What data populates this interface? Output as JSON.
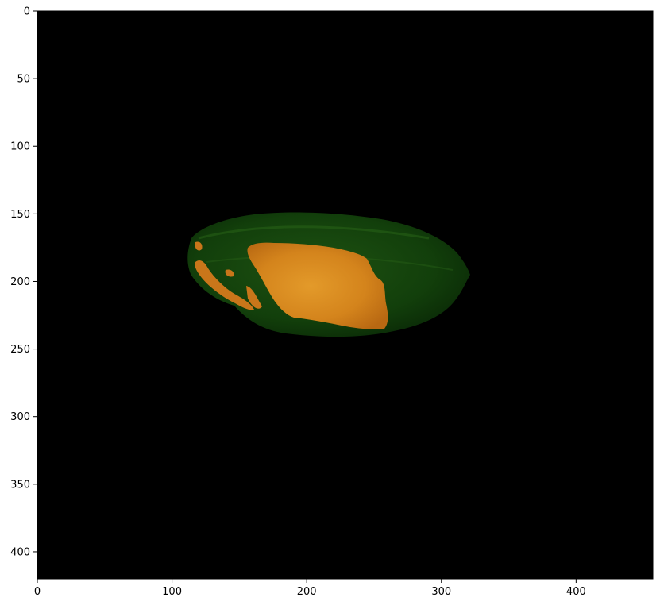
{
  "figure": {
    "image_description_colors": {
      "background": "#000000",
      "fruit_body": "#0f3a0a",
      "fruit_highlight": "#1d5a12",
      "segmented_region": "#d2801a",
      "segmented_region_light": "#e79a2c"
    },
    "axes": {
      "xlim": [
        0,
        457
      ],
      "ylim": [
        420,
        0
      ],
      "x_ticks": [
        {
          "value": 0,
          "label": "0"
        },
        {
          "value": 100,
          "label": "100"
        },
        {
          "value": 200,
          "label": "200"
        },
        {
          "value": 300,
          "label": "300"
        },
        {
          "value": 400,
          "label": "400"
        }
      ],
      "y_ticks": [
        {
          "value": 0,
          "label": "0"
        },
        {
          "value": 50,
          "label": "50"
        },
        {
          "value": 100,
          "label": "100"
        },
        {
          "value": 150,
          "label": "150"
        },
        {
          "value": 200,
          "label": "200"
        },
        {
          "value": 250,
          "label": "250"
        },
        {
          "value": 300,
          "label": "300"
        },
        {
          "value": 350,
          "label": "350"
        },
        {
          "value": 400,
          "label": "400"
        }
      ]
    }
  }
}
